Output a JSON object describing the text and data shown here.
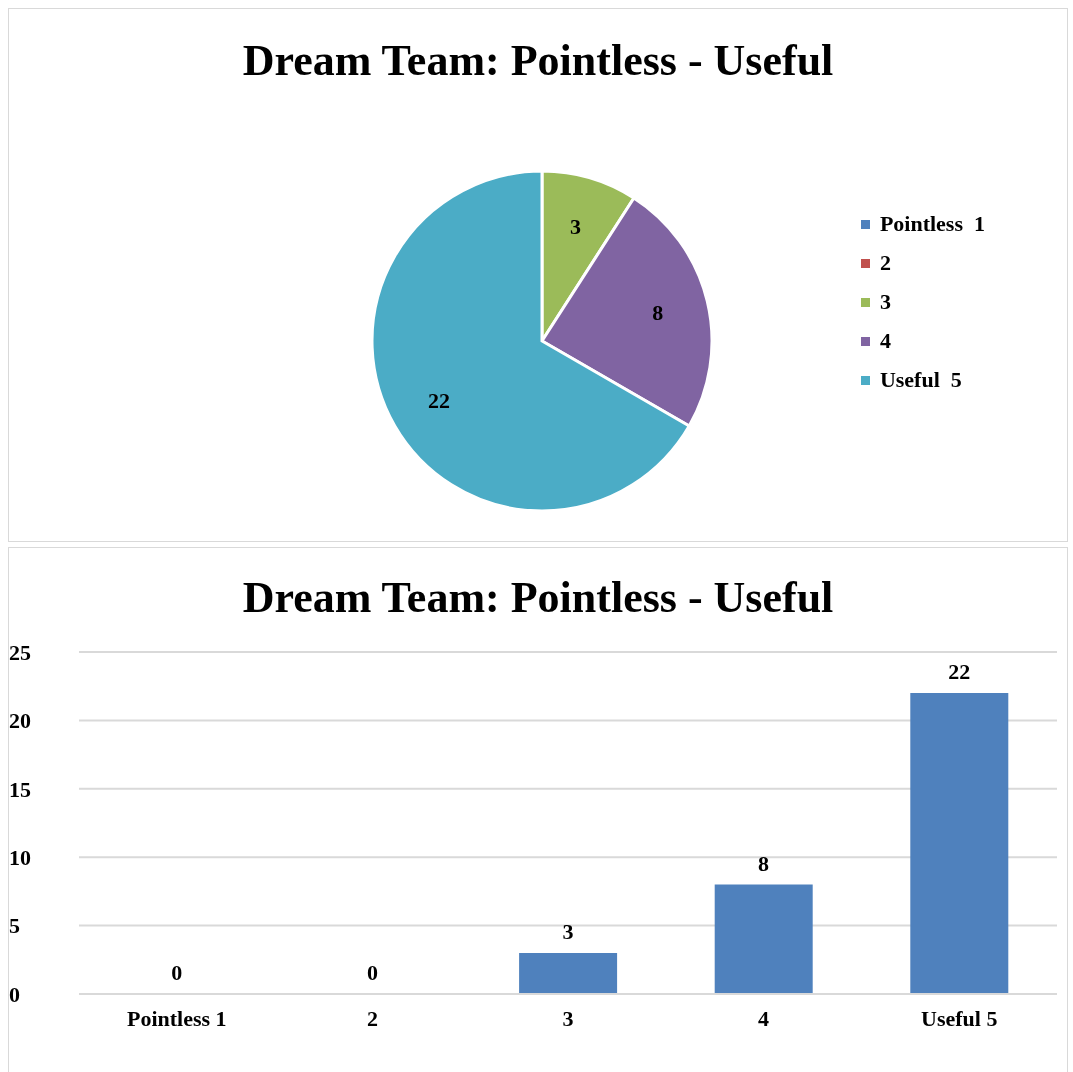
{
  "chart_data": [
    {
      "type": "pie",
      "title": "Dream Team: Pointless - Useful",
      "categories": [
        "Pointless  1",
        "2",
        "3",
        "4",
        "Useful  5"
      ],
      "values": [
        0,
        0,
        3,
        8,
        22
      ],
      "colors": [
        "#4f81bd",
        "#c0504d",
        "#9bbb59",
        "#8064a2",
        "#4bacc6"
      ],
      "value_labels": [
        null,
        null,
        "3",
        "8",
        "22"
      ],
      "legend": "right"
    },
    {
      "type": "bar",
      "title": "Dream Team: Pointless - Useful",
      "categories": [
        "Pointless  1",
        "2",
        "3",
        "4",
        "Useful  5"
      ],
      "values": [
        0,
        0,
        3,
        8,
        22
      ],
      "color": "#4f81bd",
      "ylim": [
        0,
        25
      ],
      "yticks": [
        0,
        5,
        10,
        15,
        20,
        25
      ],
      "grid": "y",
      "data_labels": true
    }
  ]
}
